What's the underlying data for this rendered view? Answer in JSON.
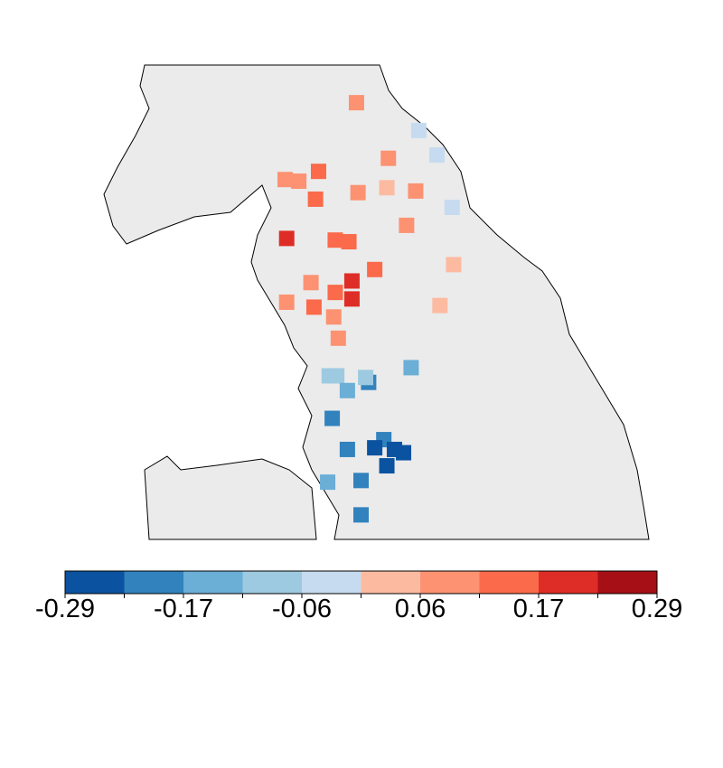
{
  "chart_data": {
    "type": "map",
    "xlim": [
      -3.8,
      0.1
    ],
    "ylim": [
      53.0,
      55.9
    ],
    "land_color": "#ebebeb",
    "points": [
      {
        "lon": -1.88,
        "lat": 55.67,
        "value": 0.087
      },
      {
        "lon": -1.47,
        "lat": 55.5,
        "value": -0.029
      },
      {
        "lon": -1.35,
        "lat": 55.35,
        "value": -0.029
      },
      {
        "lon": -1.67,
        "lat": 55.33,
        "value": 0.087
      },
      {
        "lon": -2.13,
        "lat": 55.25,
        "value": 0.145
      },
      {
        "lon": -2.35,
        "lat": 55.2,
        "value": 0.087
      },
      {
        "lon": -2.26,
        "lat": 55.19,
        "value": 0.087
      },
      {
        "lon": -2.15,
        "lat": 55.08,
        "value": 0.145
      },
      {
        "lon": -1.87,
        "lat": 55.12,
        "value": 0.087
      },
      {
        "lon": -1.68,
        "lat": 55.15,
        "value": 0.029
      },
      {
        "lon": -1.49,
        "lat": 55.13,
        "value": 0.087
      },
      {
        "lon": -1.25,
        "lat": 55.03,
        "value": -0.029
      },
      {
        "lon": -1.55,
        "lat": 54.92,
        "value": 0.087
      },
      {
        "lon": -2.34,
        "lat": 54.84,
        "value": 0.203
      },
      {
        "lon": -2.02,
        "lat": 54.83,
        "value": 0.145
      },
      {
        "lon": -1.93,
        "lat": 54.82,
        "value": 0.145
      },
      {
        "lon": -1.24,
        "lat": 54.68,
        "value": 0.029
      },
      {
        "lon": -1.76,
        "lat": 54.65,
        "value": 0.145
      },
      {
        "lon": -2.18,
        "lat": 54.57,
        "value": 0.087
      },
      {
        "lon": -1.91,
        "lat": 54.58,
        "value": 0.203
      },
      {
        "lon": -2.02,
        "lat": 54.51,
        "value": 0.145
      },
      {
        "lon": -1.91,
        "lat": 54.47,
        "value": 0.203
      },
      {
        "lon": -2.34,
        "lat": 54.45,
        "value": 0.087
      },
      {
        "lon": -2.16,
        "lat": 54.42,
        "value": 0.145
      },
      {
        "lon": -1.33,
        "lat": 54.43,
        "value": 0.029
      },
      {
        "lon": -2.03,
        "lat": 54.36,
        "value": 0.087
      },
      {
        "lon": -2.0,
        "lat": 54.23,
        "value": 0.087
      },
      {
        "lon": -1.52,
        "lat": 54.05,
        "value": -0.145
      },
      {
        "lon": -2.06,
        "lat": 54.0,
        "value": -0.087
      },
      {
        "lon": -2.01,
        "lat": 54.0,
        "value": -0.087
      },
      {
        "lon": -1.8,
        "lat": 53.96,
        "value": -0.203
      },
      {
        "lon": -1.82,
        "lat": 53.99,
        "value": -0.087
      },
      {
        "lon": -1.94,
        "lat": 53.91,
        "value": -0.145
      },
      {
        "lon": -2.04,
        "lat": 53.74,
        "value": -0.203
      },
      {
        "lon": -1.7,
        "lat": 53.61,
        "value": -0.203
      },
      {
        "lon": -1.76,
        "lat": 53.56,
        "value": -0.261
      },
      {
        "lon": -1.63,
        "lat": 53.55,
        "value": -0.261
      },
      {
        "lon": -1.57,
        "lat": 53.53,
        "value": -0.261
      },
      {
        "lon": -1.94,
        "lat": 53.55,
        "value": -0.203
      },
      {
        "lon": -1.68,
        "lat": 53.45,
        "value": -0.261
      },
      {
        "lon": -2.07,
        "lat": 53.35,
        "value": -0.145
      },
      {
        "lon": -1.85,
        "lat": 53.36,
        "value": -0.203
      },
      {
        "lon": -1.85,
        "lat": 53.15,
        "value": -0.203
      }
    ],
    "colorbar": {
      "bins": [
        -0.29,
        -0.232,
        -0.174,
        -0.116,
        -0.058,
        0,
        0.058,
        0.116,
        0.174,
        0.232,
        0.29
      ],
      "colors": [
        "#0b53a0",
        "#3182bd",
        "#6baed6",
        "#9ecae1",
        "#c6dbef",
        "#fcbba1",
        "#fc9272",
        "#fb6a4a",
        "#de2d26",
        "#a50f15"
      ],
      "ticks": [
        -0.29,
        {
          "value": -0.174,
          "label": "-0.17"
        },
        {
          "value": -0.058,
          "label": "-0.06"
        },
        {
          "value": 0.058,
          "label": "0.06"
        },
        {
          "value": 0.174,
          "label": "0.17"
        },
        0.29
      ]
    }
  }
}
